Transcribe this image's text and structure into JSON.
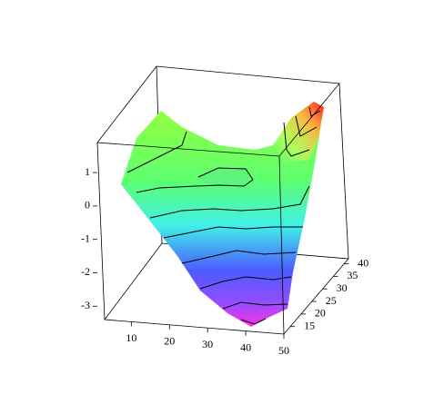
{
  "chart_data": {
    "type": "surface3d",
    "xlim": [
      3,
      50
    ],
    "xticks": [
      10,
      20,
      30,
      40,
      50
    ],
    "ylim": [
      12,
      42
    ],
    "yticks": [
      15,
      20,
      25,
      30,
      35,
      40
    ],
    "zlim": [
      -3.4,
      1.9
    ],
    "zticks": [
      1,
      0,
      -1,
      -2,
      -3
    ]
  }
}
